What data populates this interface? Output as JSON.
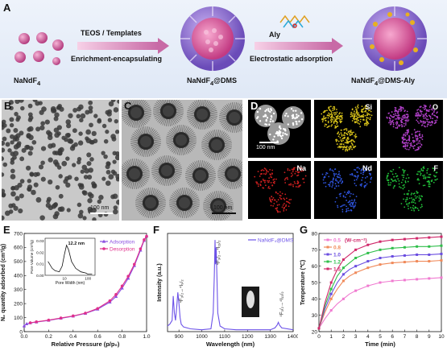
{
  "panel_labels": {
    "a": "A",
    "b": "B",
    "c": "C",
    "d": "D",
    "e": "E",
    "f": "F",
    "g": "G"
  },
  "schematic": {
    "arrow1_top": "TEOS / Templates",
    "arrow1_bottom": "Enrichment-encapsulating",
    "arrow2_top": "Aly",
    "arrow2_bottom": "Electrostatic adsorption",
    "label1": "NaNdF",
    "label1_sub": "4",
    "label2": "NaNdF",
    "label2_sub": "4",
    "label2_suffix": "@DMS",
    "label3": "NaNdF",
    "label3_sub": "4",
    "label3_suffix": "@DMS-Aly"
  },
  "tem": {
    "b_scale": "100 nm",
    "c_scale": "100 nm",
    "d_scale": "100 nm"
  },
  "eds": {
    "elements": [
      "Si",
      "O",
      "Na",
      "Nd",
      "F"
    ],
    "colors": {
      "Si": "#d8c21a",
      "O": "#b040c8",
      "Na": "#d02020",
      "Nd": "#2f55e0",
      "F": "#22c23a"
    }
  },
  "chart_data": [
    {
      "type": "line",
      "panel": "E",
      "xlabel": "Relative Pressure (p/p₀)",
      "ylabel": "N₂ quantity adsorbed (cm³/g)",
      "xlim": [
        0,
        1.0
      ],
      "ylim": [
        0,
        700
      ],
      "xticks": [
        0.0,
        0.2,
        0.4,
        0.6,
        0.8,
        1.0
      ],
      "yticks": [
        0,
        100,
        200,
        300,
        400,
        500,
        600,
        700
      ],
      "series": [
        {
          "name": "Adsorption",
          "color": "#8a4de0",
          "x": [
            0.0,
            0.02,
            0.05,
            0.1,
            0.2,
            0.3,
            0.4,
            0.5,
            0.6,
            0.7,
            0.75,
            0.8,
            0.85,
            0.9,
            0.95,
            0.98,
            1.0
          ],
          "y": [
            40,
            55,
            62,
            68,
            80,
            95,
            110,
            130,
            160,
            210,
            250,
            310,
            380,
            470,
            580,
            650,
            680
          ]
        },
        {
          "name": "Desorption",
          "color": "#e0308c",
          "x": [
            1.0,
            0.98,
            0.95,
            0.9,
            0.85,
            0.8,
            0.75,
            0.7,
            0.6,
            0.5,
            0.4,
            0.3,
            0.2,
            0.1,
            0.05
          ],
          "y": [
            680,
            655,
            590,
            480,
            395,
            325,
            265,
            220,
            165,
            132,
            112,
            97,
            82,
            70,
            63
          ]
        }
      ],
      "inset": {
        "xlabel": "Pore Width (nm)",
        "ylabel": "Pore Volume (cm³/g)",
        "annotation": "12.2 nm",
        "yticks": [
          0.0,
          0.01,
          0.02,
          0.03
        ],
        "xticks": [
          "10",
          "100"
        ],
        "x": [
          2,
          3,
          4,
          6,
          8,
          10,
          12.2,
          15,
          20,
          30,
          50,
          80,
          100,
          150
        ],
        "y": [
          0.012,
          0.006,
          0.004,
          0.003,
          0.008,
          0.018,
          0.026,
          0.022,
          0.012,
          0.006,
          0.003,
          0.002,
          0.001,
          0.001
        ]
      }
    },
    {
      "type": "line",
      "panel": "F",
      "xlabel": "Wavelength (nm)",
      "ylabel": "Intensity (a.u.)",
      "xlim": [
        850,
        1400
      ],
      "xticks": [
        900,
        1000,
        1100,
        1200,
        1300,
        1400
      ],
      "legend": "NaNdF₄@DMS",
      "annotations": [
        {
          "text": "⁴F₃/₂→⁴I₉/₂",
          "x": 895
        },
        {
          "text": "⁴F₃/₂→⁴I₁₁/₂",
          "x": 1058
        },
        {
          "text": "⁴F₃/₂→⁴I₁₃/₂",
          "x": 1335
        }
      ],
      "series": [
        {
          "name": "NaNdF₄@DMS",
          "color": "#6c52e8",
          "x": [
            850,
            860,
            870,
            875,
            880,
            885,
            890,
            895,
            900,
            905,
            910,
            920,
            950,
            1000,
            1040,
            1050,
            1055,
            1058,
            1060,
            1063,
            1066,
            1070,
            1080,
            1100,
            1150,
            1200,
            1300,
            1320,
            1330,
            1335,
            1340,
            1350,
            1400
          ],
          "y": [
            0.06,
            0.08,
            0.12,
            0.38,
            0.2,
            0.12,
            0.25,
            0.42,
            0.3,
            0.15,
            0.08,
            0.05,
            0.03,
            0.02,
            0.03,
            0.2,
            0.6,
            0.98,
            0.72,
            0.9,
            0.6,
            0.2,
            0.06,
            0.03,
            0.02,
            0.02,
            0.02,
            0.04,
            0.07,
            0.1,
            0.07,
            0.04,
            0.02
          ]
        }
      ]
    },
    {
      "type": "line",
      "panel": "G",
      "xlabel": "Time (min)",
      "ylabel": "Temperature (℃)",
      "xlim": [
        0,
        10
      ],
      "ylim": [
        20,
        80
      ],
      "xticks": [
        0,
        1,
        2,
        3,
        4,
        5,
        6,
        7,
        8,
        9,
        10
      ],
      "yticks": [
        20,
        30,
        40,
        50,
        60,
        70,
        80
      ],
      "legend_unit": "(W·cm⁻²)",
      "series": [
        {
          "name": "0.5",
          "color": "#f07ad0",
          "x": [
            0,
            0.5,
            1,
            1.5,
            2,
            2.5,
            3,
            4,
            5,
            6,
            7,
            8,
            9,
            10
          ],
          "y": [
            22,
            28,
            33,
            37,
            40,
            43,
            45,
            48,
            50,
            51,
            51.5,
            52,
            52.5,
            53
          ]
        },
        {
          "name": "0.8",
          "color": "#f08a5a",
          "x": [
            0,
            0.5,
            1,
            1.5,
            2,
            2.5,
            3,
            4,
            5,
            6,
            7,
            8,
            9,
            10
          ],
          "y": [
            22,
            32,
            40,
            46,
            51,
            54,
            56,
            59,
            61,
            62,
            62.5,
            63,
            63,
            63.5
          ]
        },
        {
          "name": "1.0",
          "color": "#6a4de0",
          "x": [
            0,
            0.5,
            1,
            1.5,
            2,
            2.5,
            3,
            4,
            5,
            6,
            7,
            8,
            9,
            10
          ],
          "y": [
            22,
            34,
            43,
            50,
            55,
            58,
            60,
            63,
            65,
            66,
            66.5,
            67,
            67,
            67.5
          ]
        },
        {
          "name": "1.2",
          "color": "#2fbf4a",
          "x": [
            0,
            0.5,
            1,
            1.5,
            2,
            2.5,
            3,
            4,
            5,
            6,
            7,
            8,
            9,
            10
          ],
          "y": [
            22,
            36,
            46,
            54,
            59,
            62,
            65,
            68,
            70,
            71,
            71.5,
            72,
            72,
            72.5
          ]
        },
        {
          "name": "1.5",
          "color": "#d0286a",
          "x": [
            0,
            0.5,
            1,
            1.5,
            2,
            2.5,
            3,
            4,
            5,
            6,
            7,
            8,
            9,
            10
          ],
          "y": [
            22,
            38,
            50,
            58,
            64,
            67,
            70,
            73,
            75,
            76,
            76.5,
            77,
            77.5,
            78
          ]
        }
      ]
    }
  ]
}
